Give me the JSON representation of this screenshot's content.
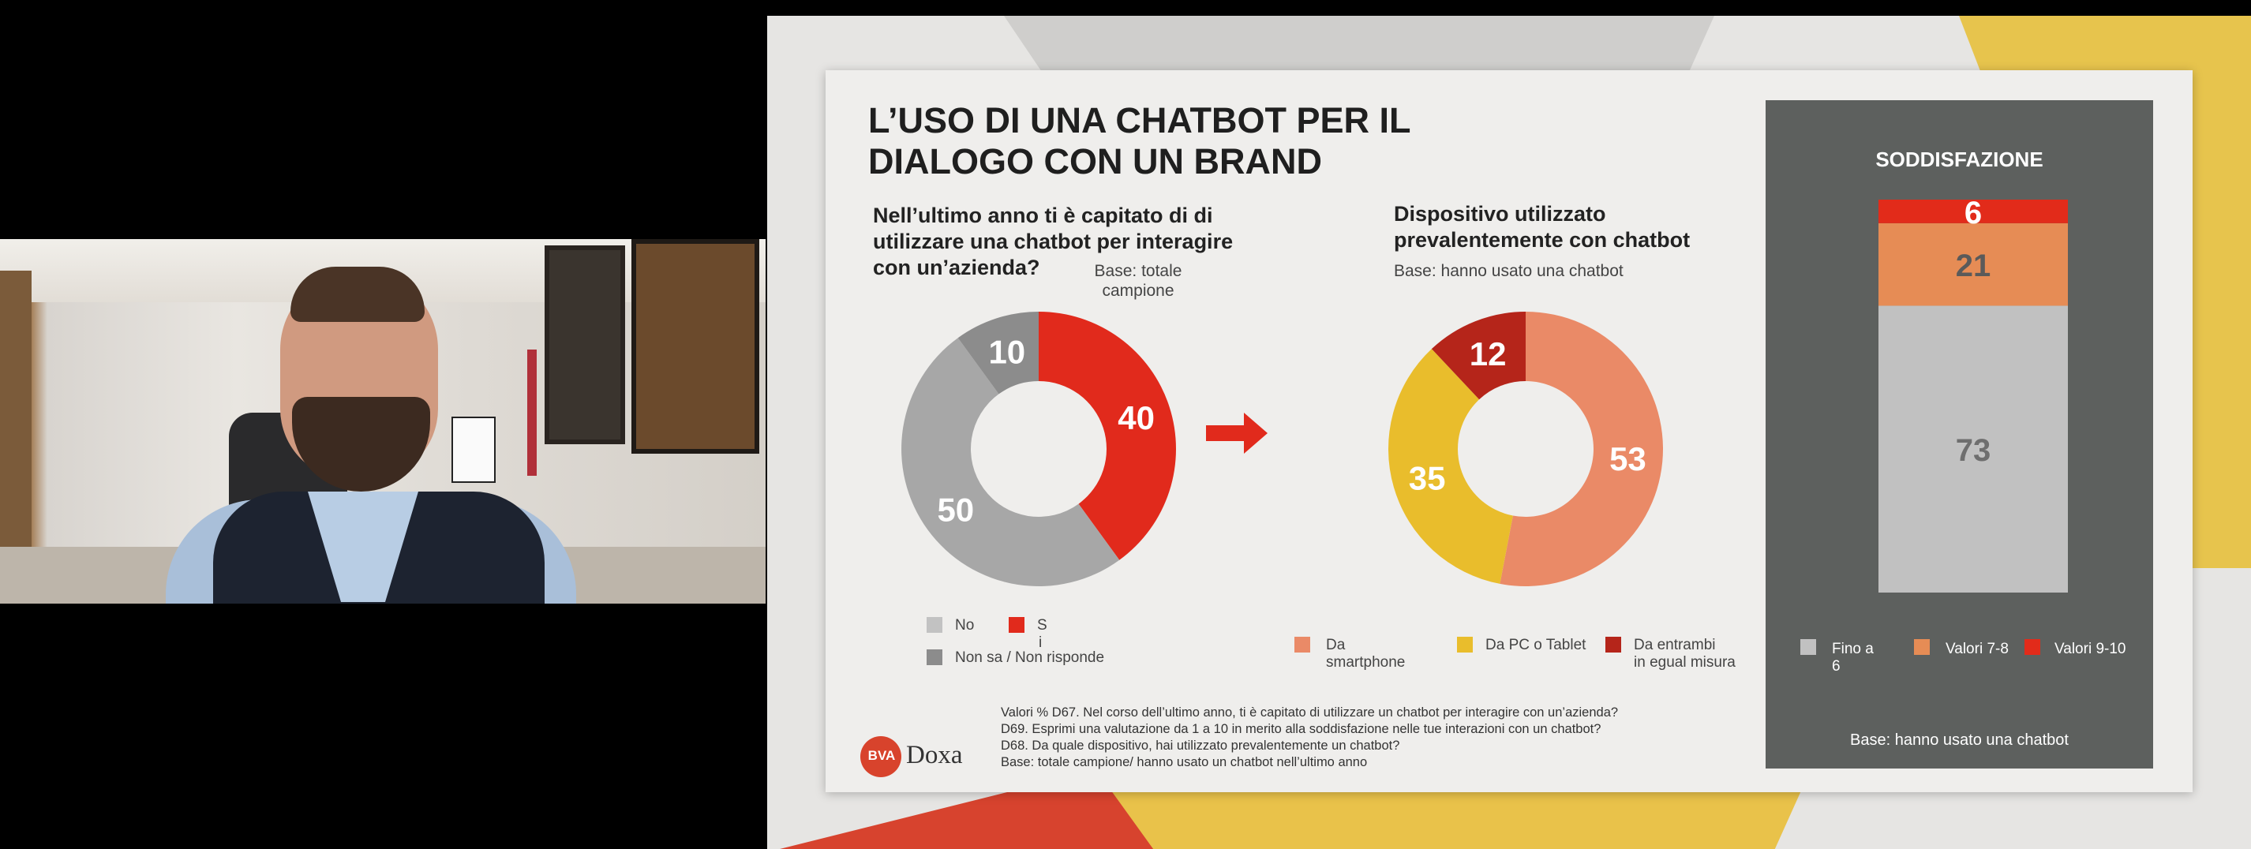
{
  "slide": {
    "title_line1": "L’USO DI UNA CHATBOT PER IL",
    "title_line2": "DIALOGO CON UN BRAND",
    "q1_line1": "Nell’ultimo anno ti è capitato di di",
    "q1_line2": "utilizzare una chatbot per interagire",
    "q1_line3": "con un’azienda?",
    "base1_line1": "Base: totale",
    "base1_line2": "campione",
    "q2_line1": "Dispositivo utilizzato",
    "q2_line2": "prevalentemente con chatbot",
    "base2": "Base: hanno usato una chatbot",
    "legend1": {
      "no": "No",
      "si_a": "S",
      "si_b": "i",
      "nonsa": "Non sa / Non risponde"
    },
    "legend2": {
      "smart_a": "Da",
      "smart_b": "smartphone",
      "pc": "Da PC o Tablet",
      "both_a": "Da entrambi",
      "both_b": "in egual misura"
    },
    "footnote": [
      "Valori % D67. Nel corso dell’ultimo anno, ti è capitato di utilizzare un chatbot per interagire con un’azienda?",
      "D69. Esprimi una valutazione da 1 a 10 in merito alla soddisfazione nelle tue interazioni con un chatbot?",
      "D68. Da quale dispositivo, hai utilizzato prevalentemente un chatbot?",
      "Base: totale campione/ hanno usato un chatbot nell’ultimo anno"
    ],
    "logo": {
      "bva": "BVA",
      "doxa": "Doxa"
    },
    "panel": {
      "title": "SODDISFAZIONE",
      "legend_a_1": "Fino a",
      "legend_a_2": "6",
      "legend_b": "Valori 7-8",
      "legend_c": "Valori 9-10",
      "base": "Base: hanno usato una chatbot"
    }
  },
  "colors": {
    "grey_light": "#a7a7a7",
    "grey_dark": "#8c8c8c",
    "red": "#e12a1c",
    "orange": "#ea8a67",
    "yellow": "#e9bd2c",
    "darkred": "#b5251a",
    "panel_grey": "#c1c1c1",
    "panel_orange": "#e68c55",
    "panel_red": "#e22b1a"
  },
  "chart_data": [
    {
      "type": "pie",
      "title": "Nell’ultimo anno ti è capitato di di utilizzare una chatbot per interagire con un’azienda?",
      "categories": [
        "Si",
        "No",
        "Non sa / Non risponde"
      ],
      "values": [
        40,
        50,
        10
      ],
      "labels": [
        "40",
        "50",
        "10"
      ]
    },
    {
      "type": "pie",
      "title": "Dispositivo utilizzato prevalentemente con chatbot",
      "categories": [
        "Da smartphone",
        "Da PC o Tablet",
        "Da entrambi in egual misura"
      ],
      "values": [
        53,
        35,
        12
      ],
      "labels": [
        "53",
        "35",
        "12"
      ]
    },
    {
      "type": "bar",
      "title": "SODDISFAZIONE",
      "categories": [
        "Fino a 6",
        "Valori 7-8",
        "Valori 9-10"
      ],
      "values": [
        73,
        21,
        6
      ],
      "labels": [
        "73",
        "21",
        "6"
      ],
      "stacked": true
    }
  ]
}
